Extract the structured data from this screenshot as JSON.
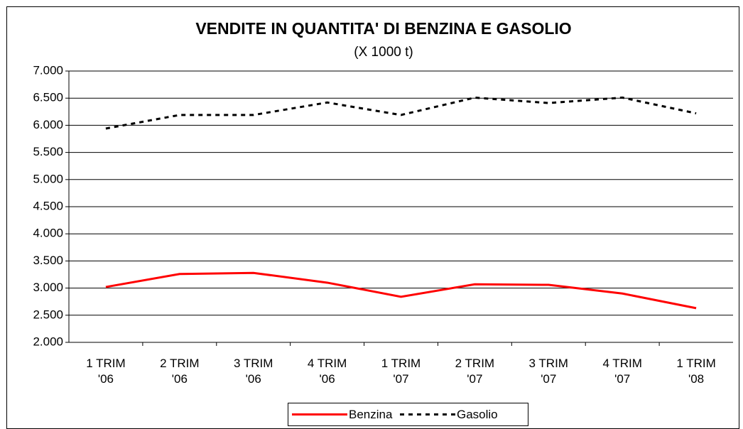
{
  "chart_data": {
    "type": "line",
    "title": "VENDITE IN QUANTITA' DI BENZINA E GASOLIO",
    "subtitle": "(X 1000 t)",
    "categories": [
      "1 TRIM '06",
      "2 TRIM '06",
      "3 TRIM '06",
      "4 TRIM '06",
      "1 TRIM '07",
      "2 TRIM '07",
      "3 TRIM '07",
      "4 TRIM '07",
      "1 TRIM '08"
    ],
    "series": [
      {
        "name": "Benzina",
        "color": "#ff0000",
        "values": [
          3020,
          3260,
          3280,
          3100,
          2840,
          3070,
          3060,
          2900,
          2630
        ]
      },
      {
        "name": "Gasolio",
        "color": "#000000",
        "values": [
          5940,
          6190,
          6190,
          6420,
          6190,
          6510,
          6410,
          6510,
          6220
        ]
      }
    ],
    "ylim": [
      2000,
      7000
    ],
    "yticks": [
      {
        "value": 2000,
        "label": "2.000"
      },
      {
        "value": 2500,
        "label": "2.500"
      },
      {
        "value": 3000,
        "label": "3.000"
      },
      {
        "value": 3500,
        "label": "3.500"
      },
      {
        "value": 4000,
        "label": "4.000"
      },
      {
        "value": 4500,
        "label": "4.500"
      },
      {
        "value": 5000,
        "label": "5.000"
      },
      {
        "value": 5500,
        "label": "5.500"
      },
      {
        "value": 6000,
        "label": "6.000"
      },
      {
        "value": 6500,
        "label": "6.500"
      },
      {
        "value": 7000,
        "label": "7.000"
      }
    ],
    "grid": true,
    "legend": "bottom"
  }
}
